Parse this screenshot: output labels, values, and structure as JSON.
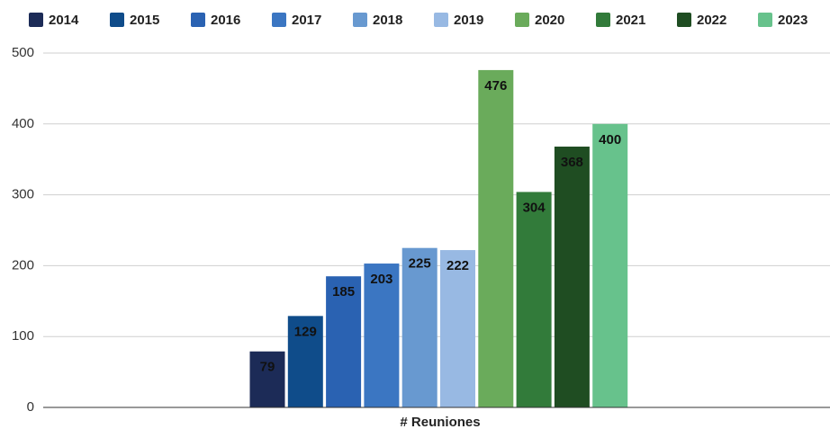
{
  "chart_data": {
    "type": "bar",
    "categories": [
      "# Reuniones"
    ],
    "series": [
      {
        "name": "2014",
        "color": "#1c2b57",
        "values": [
          79
        ]
      },
      {
        "name": "2015",
        "color": "#0f4c8a",
        "values": [
          129
        ]
      },
      {
        "name": "2016",
        "color": "#2a62b2",
        "values": [
          185
        ]
      },
      {
        "name": "2017",
        "color": "#3b76c2",
        "values": [
          203
        ]
      },
      {
        "name": "2018",
        "color": "#6899d0",
        "values": [
          225
        ]
      },
      {
        "name": "2019",
        "color": "#98b9e3",
        "values": [
          222
        ]
      },
      {
        "name": "2020",
        "color": "#6aab5b",
        "values": [
          476
        ]
      },
      {
        "name": "2021",
        "color": "#327b3a",
        "values": [
          304
        ]
      },
      {
        "name": "2022",
        "color": "#1f4d22",
        "values": [
          368
        ]
      },
      {
        "name": "2023",
        "color": "#67c28c",
        "values": [
          400
        ]
      }
    ],
    "ylim": [
      0,
      500
    ],
    "yticks": [
      0,
      100,
      200,
      300,
      400,
      500
    ],
    "grid": true,
    "legend": "top"
  }
}
